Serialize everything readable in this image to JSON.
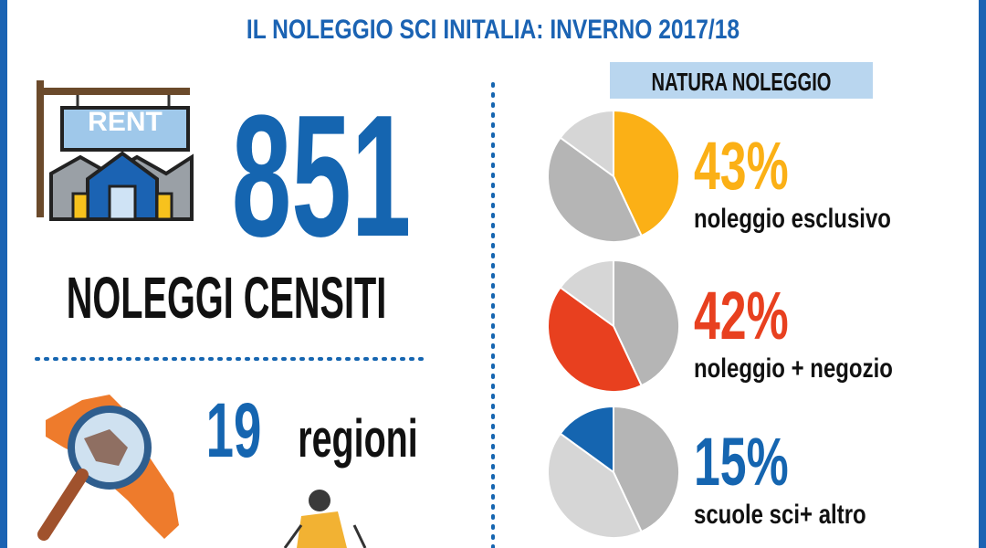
{
  "header": {
    "title": "IL NOLEGGIO SCI INITALIA: INVERNO 2017/18"
  },
  "rentals": {
    "sign": "RENT",
    "count": 851,
    "label": "NOLEGGI CENSITI"
  },
  "regions": {
    "count": 19,
    "label": "regioni"
  },
  "nature": {
    "title": "NATURA NOLEGGIO",
    "items": [
      {
        "value": 43,
        "value_label": "43%",
        "label": "noleggio esclusivo",
        "color": "#fbb016"
      },
      {
        "value": 42,
        "value_label": "42%",
        "label": "noleggio + negozio",
        "color": "#e8401f"
      },
      {
        "value": 15,
        "value_label": "15%",
        "label": "scuole sci+ altro",
        "color": "#1565b0"
      }
    ]
  }
}
